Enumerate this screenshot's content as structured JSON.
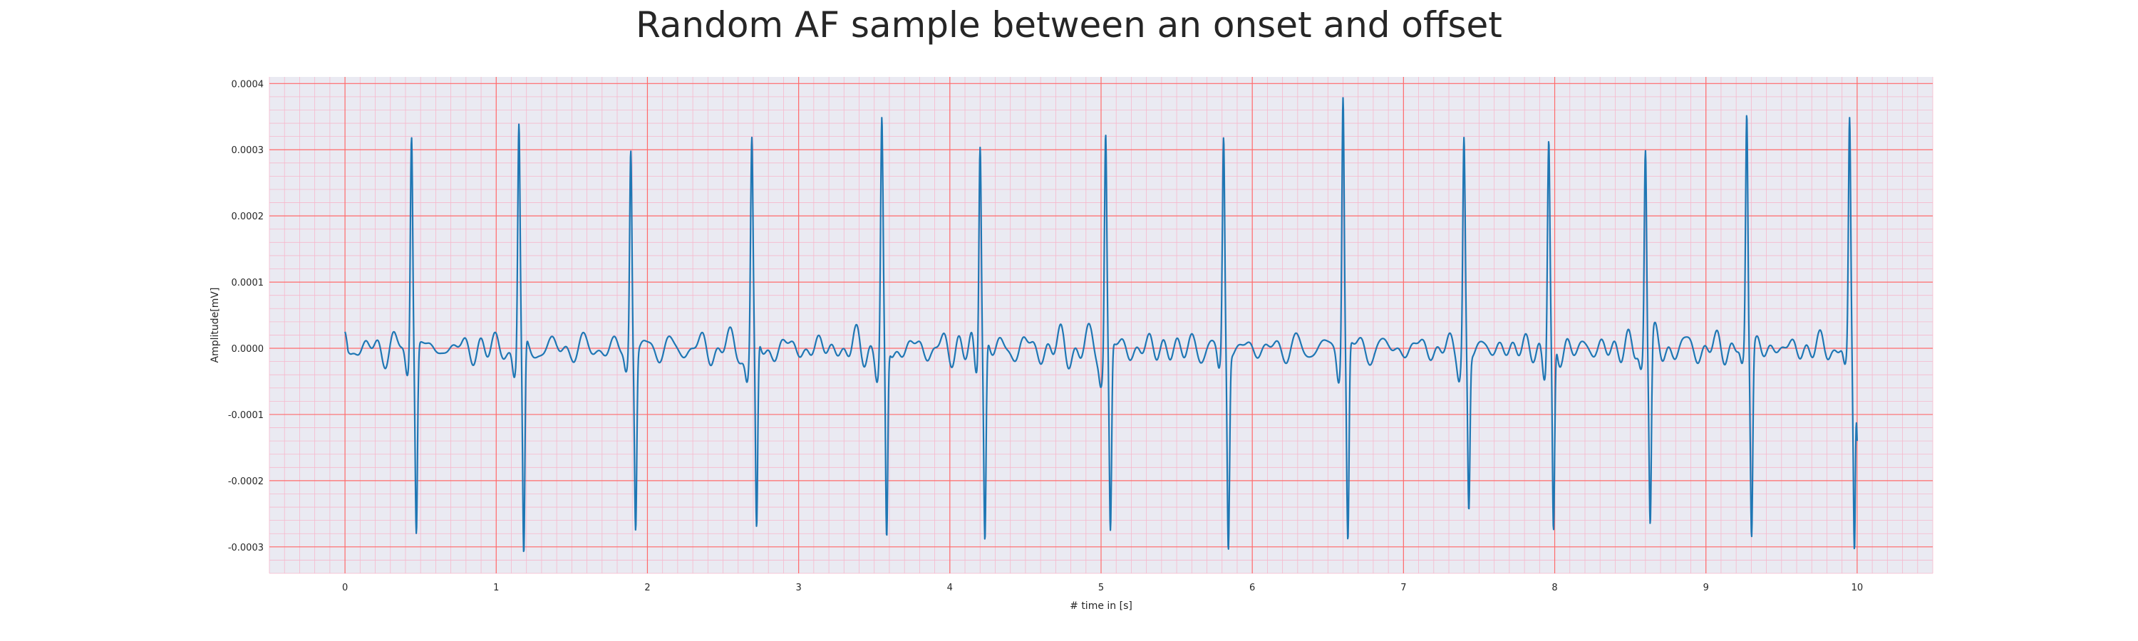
{
  "chart_data": {
    "type": "line",
    "title": "Random AF sample between an onset and offset",
    "xlabel": "# time in [s]",
    "ylabel": "Amplitude[mV]",
    "xlim": [
      -0.5,
      10.5
    ],
    "ylim": [
      -0.00034,
      0.00041
    ],
    "xticks": [
      0,
      1,
      2,
      3,
      4,
      5,
      6,
      7,
      8,
      9,
      10
    ],
    "xtick_labels": [
      "0",
      "1",
      "2",
      "3",
      "4",
      "5",
      "6",
      "7",
      "8",
      "9",
      "10"
    ],
    "yticks": [
      -0.0003,
      -0.0002,
      -0.0001,
      0.0,
      0.0001,
      0.0002,
      0.0003,
      0.0004
    ],
    "ytick_labels": [
      "-0.0003",
      "-0.0002",
      "-0.0001",
      "0.0000",
      "0.0001",
      "0.0002",
      "0.0003",
      "0.0004"
    ],
    "grid": true,
    "legend": "none",
    "colors": {
      "line": "#1f77b4",
      "background": "#eaeaf2",
      "major_grid": "#ff6b6b",
      "minor_grid": "#f6b8cc"
    },
    "beats": [
      {
        "t": 0.44,
        "peak": 0.00032,
        "trough": -0.00028
      },
      {
        "t": 1.15,
        "peak": 0.00034,
        "trough": -0.00031
      },
      {
        "t": 1.89,
        "peak": 0.0003,
        "trough": -0.000275
      },
      {
        "t": 2.69,
        "peak": 0.00032,
        "trough": -0.00027
      },
      {
        "t": 3.55,
        "peak": 0.00035,
        "trough": -0.000285
      },
      {
        "t": 4.2,
        "peak": 0.000305,
        "trough": -0.00029
      },
      {
        "t": 5.03,
        "peak": 0.000325,
        "trough": -0.000275
      },
      {
        "t": 5.81,
        "peak": 0.00032,
        "trough": -0.000305
      },
      {
        "t": 6.6,
        "peak": 0.00038,
        "trough": -0.00029
      },
      {
        "t": 7.4,
        "peak": 0.00032,
        "trough": -0.000245
      },
      {
        "t": 7.96,
        "peak": 0.000315,
        "trough": -0.000275
      },
      {
        "t": 8.6,
        "peak": 0.0003,
        "trough": -0.000265
      },
      {
        "t": 9.27,
        "peak": 0.000355,
        "trough": -0.000285
      },
      {
        "t": 9.95,
        "peak": 0.00035,
        "trough": -0.000305
      }
    ],
    "series": [
      {
        "x_start": 0.0,
        "x_end": 10.0,
        "baseline_noise_amplitude": 3e-05,
        "initial_value": 2.5e-05,
        "final_value": -0.00014
      }
    ]
  }
}
